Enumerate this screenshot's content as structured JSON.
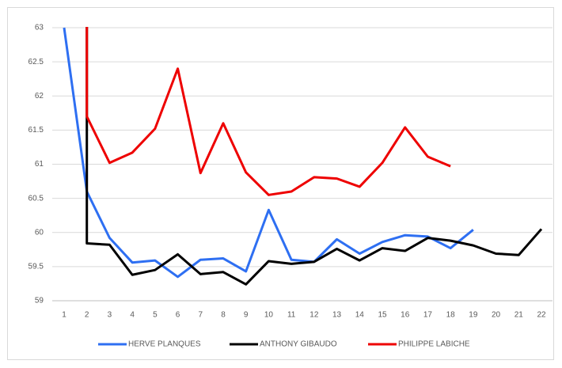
{
  "chart_data": {
    "type": "line",
    "xlim": [
      1,
      22
    ],
    "xticks": [
      1,
      2,
      3,
      4,
      5,
      6,
      7,
      8,
      9,
      10,
      11,
      12,
      13,
      14,
      15,
      16,
      17,
      18,
      19,
      20,
      21,
      22
    ],
    "ylim": [
      59,
      63
    ],
    "yticks": [
      59,
      59.5,
      60,
      60.5,
      61,
      61.5,
      62,
      62.5,
      63
    ],
    "grid": true,
    "legend": "bottom",
    "series": [
      {
        "name": "HERVE PLANQUES",
        "color": "#2e6ff2",
        "x": [
          1,
          2,
          3,
          4,
          5,
          6,
          7,
          8,
          9,
          10,
          11,
          12,
          13,
          14,
          15,
          16,
          17,
          18,
          19
        ],
        "values": [
          63,
          60.6,
          59.92,
          59.56,
          59.59,
          59.35,
          59.6,
          59.62,
          59.43,
          60.33,
          59.6,
          59.57,
          59.9,
          59.69,
          59.86,
          59.96,
          59.94,
          59.77,
          60.04
        ]
      },
      {
        "name": "ANTHONY GIBAUDO",
        "color": "#000000",
        "x": [
          2,
          2,
          3,
          4,
          5,
          6,
          7,
          8,
          9,
          10,
          11,
          12,
          13,
          14,
          15,
          16,
          17,
          18,
          19,
          20,
          21,
          22
        ],
        "values": [
          65,
          59.84,
          59.82,
          59.38,
          59.45,
          59.68,
          59.39,
          59.42,
          59.24,
          59.58,
          59.54,
          59.57,
          59.76,
          59.59,
          59.77,
          59.73,
          59.92,
          59.88,
          59.81,
          59.69,
          59.67,
          60.05
        ]
      },
      {
        "name": "PHILIPPE LABICHE",
        "color": "#ee0000",
        "x": [
          2,
          2,
          3,
          4,
          5,
          6,
          7,
          8,
          9,
          10,
          11,
          12,
          13,
          14,
          15,
          16,
          17,
          18
        ],
        "values": [
          65,
          61.7,
          61.02,
          61.17,
          61.52,
          62.4,
          60.87,
          61.6,
          60.88,
          60.55,
          60.6,
          60.81,
          60.79,
          60.67,
          61.02,
          61.54,
          61.11,
          60.97
        ]
      }
    ]
  }
}
